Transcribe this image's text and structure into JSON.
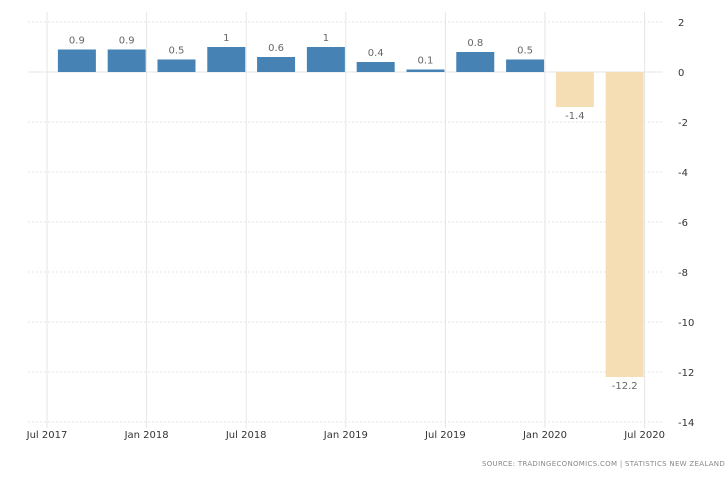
{
  "chart_data": {
    "type": "bar",
    "categories": [
      "2017-09",
      "2017-12",
      "2018-03",
      "2018-06",
      "2018-09",
      "2018-12",
      "2019-03",
      "2019-06",
      "2019-09",
      "2019-12",
      "2020-03",
      "2020-06"
    ],
    "values": [
      0.9,
      0.9,
      0.5,
      1,
      0.6,
      1,
      0.4,
      0.1,
      0.8,
      0.5,
      -1.4,
      -12.2
    ],
    "data_labels": [
      "0.9",
      "0.9",
      "0.5",
      "1",
      "0.6",
      "1",
      "0.4",
      "0.1",
      "0.8",
      "0.5",
      "-1.4",
      "-12.2"
    ],
    "x_tick_labels": [
      "Jul 2017",
      "Jan 2018",
      "Jul 2018",
      "Jan 2019",
      "Jul 2019",
      "Jan 2020",
      "Jul 2020"
    ],
    "y_ticks": [
      2,
      0,
      -2,
      -4,
      -6,
      -8,
      -10,
      -12,
      -14
    ],
    "ylim": [
      -14,
      2
    ],
    "y_axis_side": "right",
    "grid": true,
    "colors": {
      "positive": "#4682b4",
      "negative": "#f5deb3"
    },
    "title": "",
    "xlabel": "",
    "ylabel": ""
  },
  "footer": {
    "source": "SOURCE: TRADINGECONOMICS.COM | STATISTICS NEW ZEALAND"
  }
}
